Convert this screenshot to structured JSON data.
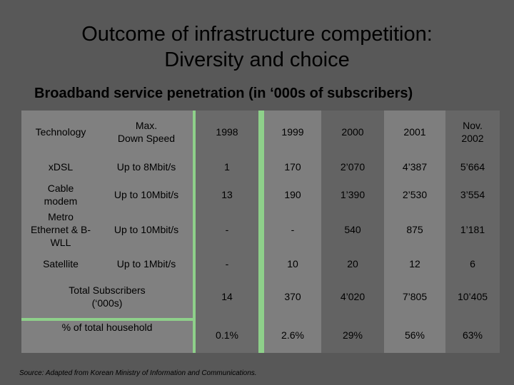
{
  "title": "Outcome of infrastructure competition:\nDiversity and choice",
  "subtitle": "Broadband service penetration (in ‘000s of subscribers)",
  "colors": {
    "background": "#585858",
    "light_panel": "#808080",
    "dark_panel": "#666666",
    "green_accent": "#8ed08a",
    "total_row": "#7a7a7a"
  },
  "table": {
    "headers": [
      "Technology",
      "Max.\nDown Speed",
      "1998",
      "1999",
      "2000",
      "2001",
      "Nov.\n2002"
    ],
    "rows": [
      {
        "technology": "xDSL",
        "speed": "Up to 8Mbit/s",
        "values": [
          "1",
          "170",
          "2’070",
          "4’387",
          "5’664"
        ]
      },
      {
        "technology": "Cable\nmodem",
        "speed": "Up to 10Mbit/s",
        "values": [
          "13",
          "190",
          "1’390",
          "2’530",
          "3’554"
        ]
      },
      {
        "technology": "Metro\nEthernet & B-\nWLL",
        "speed": "Up to 10Mbit/s",
        "values": [
          "-",
          "-",
          "540",
          "875",
          "1’181"
        ]
      },
      {
        "technology": "Satellite",
        "speed": "Up to 1Mbit/s",
        "values": [
          "-",
          "10",
          "20",
          "12",
          "6"
        ]
      }
    ],
    "total_label": "Total Subscribers\n(‘000s)",
    "total_values": [
      "14",
      "370",
      "4’020",
      "7’805",
      "10’405"
    ],
    "percent_label": "% of total household",
    "percent_values": [
      "0.1%",
      "2.6%",
      "29%",
      "56%",
      "63%"
    ]
  },
  "source": "Source: Adapted from Korean Ministry of Information and Communications."
}
